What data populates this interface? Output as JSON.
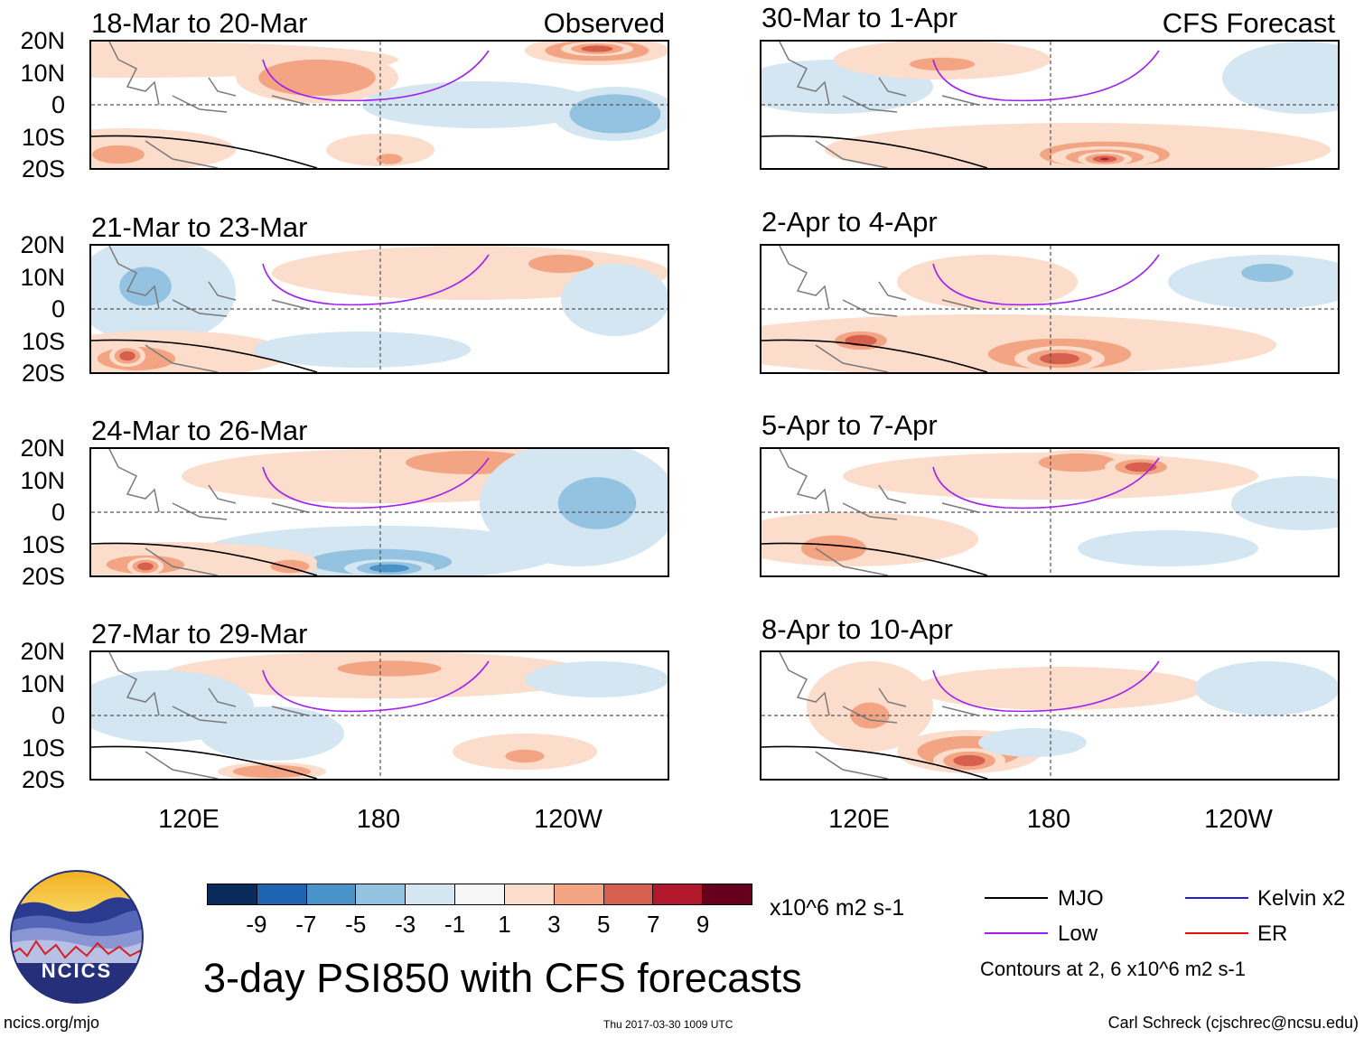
{
  "header": {
    "left_source": "Observed",
    "right_source": "CFS Forecast"
  },
  "panels": [
    {
      "title": "18-Mar to 20-Mar"
    },
    {
      "title": "21-Mar to 23-Mar"
    },
    {
      "title": "24-Mar to 26-Mar"
    },
    {
      "title": "27-Mar to 29-Mar"
    },
    {
      "title": "30-Mar to 1-Apr"
    },
    {
      "title": "2-Apr to 4-Apr"
    },
    {
      "title": "5-Apr to 7-Apr"
    },
    {
      "title": "8-Apr to 10-Apr"
    }
  ],
  "lat_labels": [
    "20N",
    "10N",
    "0",
    "10S",
    "20S"
  ],
  "lon_labels": [
    "120E",
    "180",
    "120W"
  ],
  "colorbar": {
    "colors": [
      "#0b2a5c",
      "#1f64b2",
      "#4a93c8",
      "#93c3e0",
      "#d3e6f2",
      "#f7f7f7",
      "#fcdccb",
      "#f3a482",
      "#d6604d",
      "#b2182b",
      "#67001f"
    ],
    "labels": [
      "-9",
      "-7",
      "-5",
      "-3",
      "-1",
      "1",
      "3",
      "5",
      "7",
      "9"
    ],
    "units": "x10^6 m2 s-1"
  },
  "legend": {
    "items": [
      {
        "label": "MJO",
        "color": "#000000"
      },
      {
        "label": "Kelvin x2",
        "color": "#1f1fd6"
      },
      {
        "label": "Low",
        "color": "#a020f0"
      },
      {
        "label": "ER",
        "color": "#e01010"
      }
    ],
    "contours_note": "Contours at 2, 6 x10^6 m2 s-1"
  },
  "footer": {
    "main_title": "3-day PSI850 with CFS forecasts",
    "logo_text": "NCICS",
    "website": "ncics.org/mjo",
    "timestamp": "Thu 2017-03-30 1009 UTC",
    "credit": "Carl Schreck (cjschrec@ncsu.edu)"
  }
}
